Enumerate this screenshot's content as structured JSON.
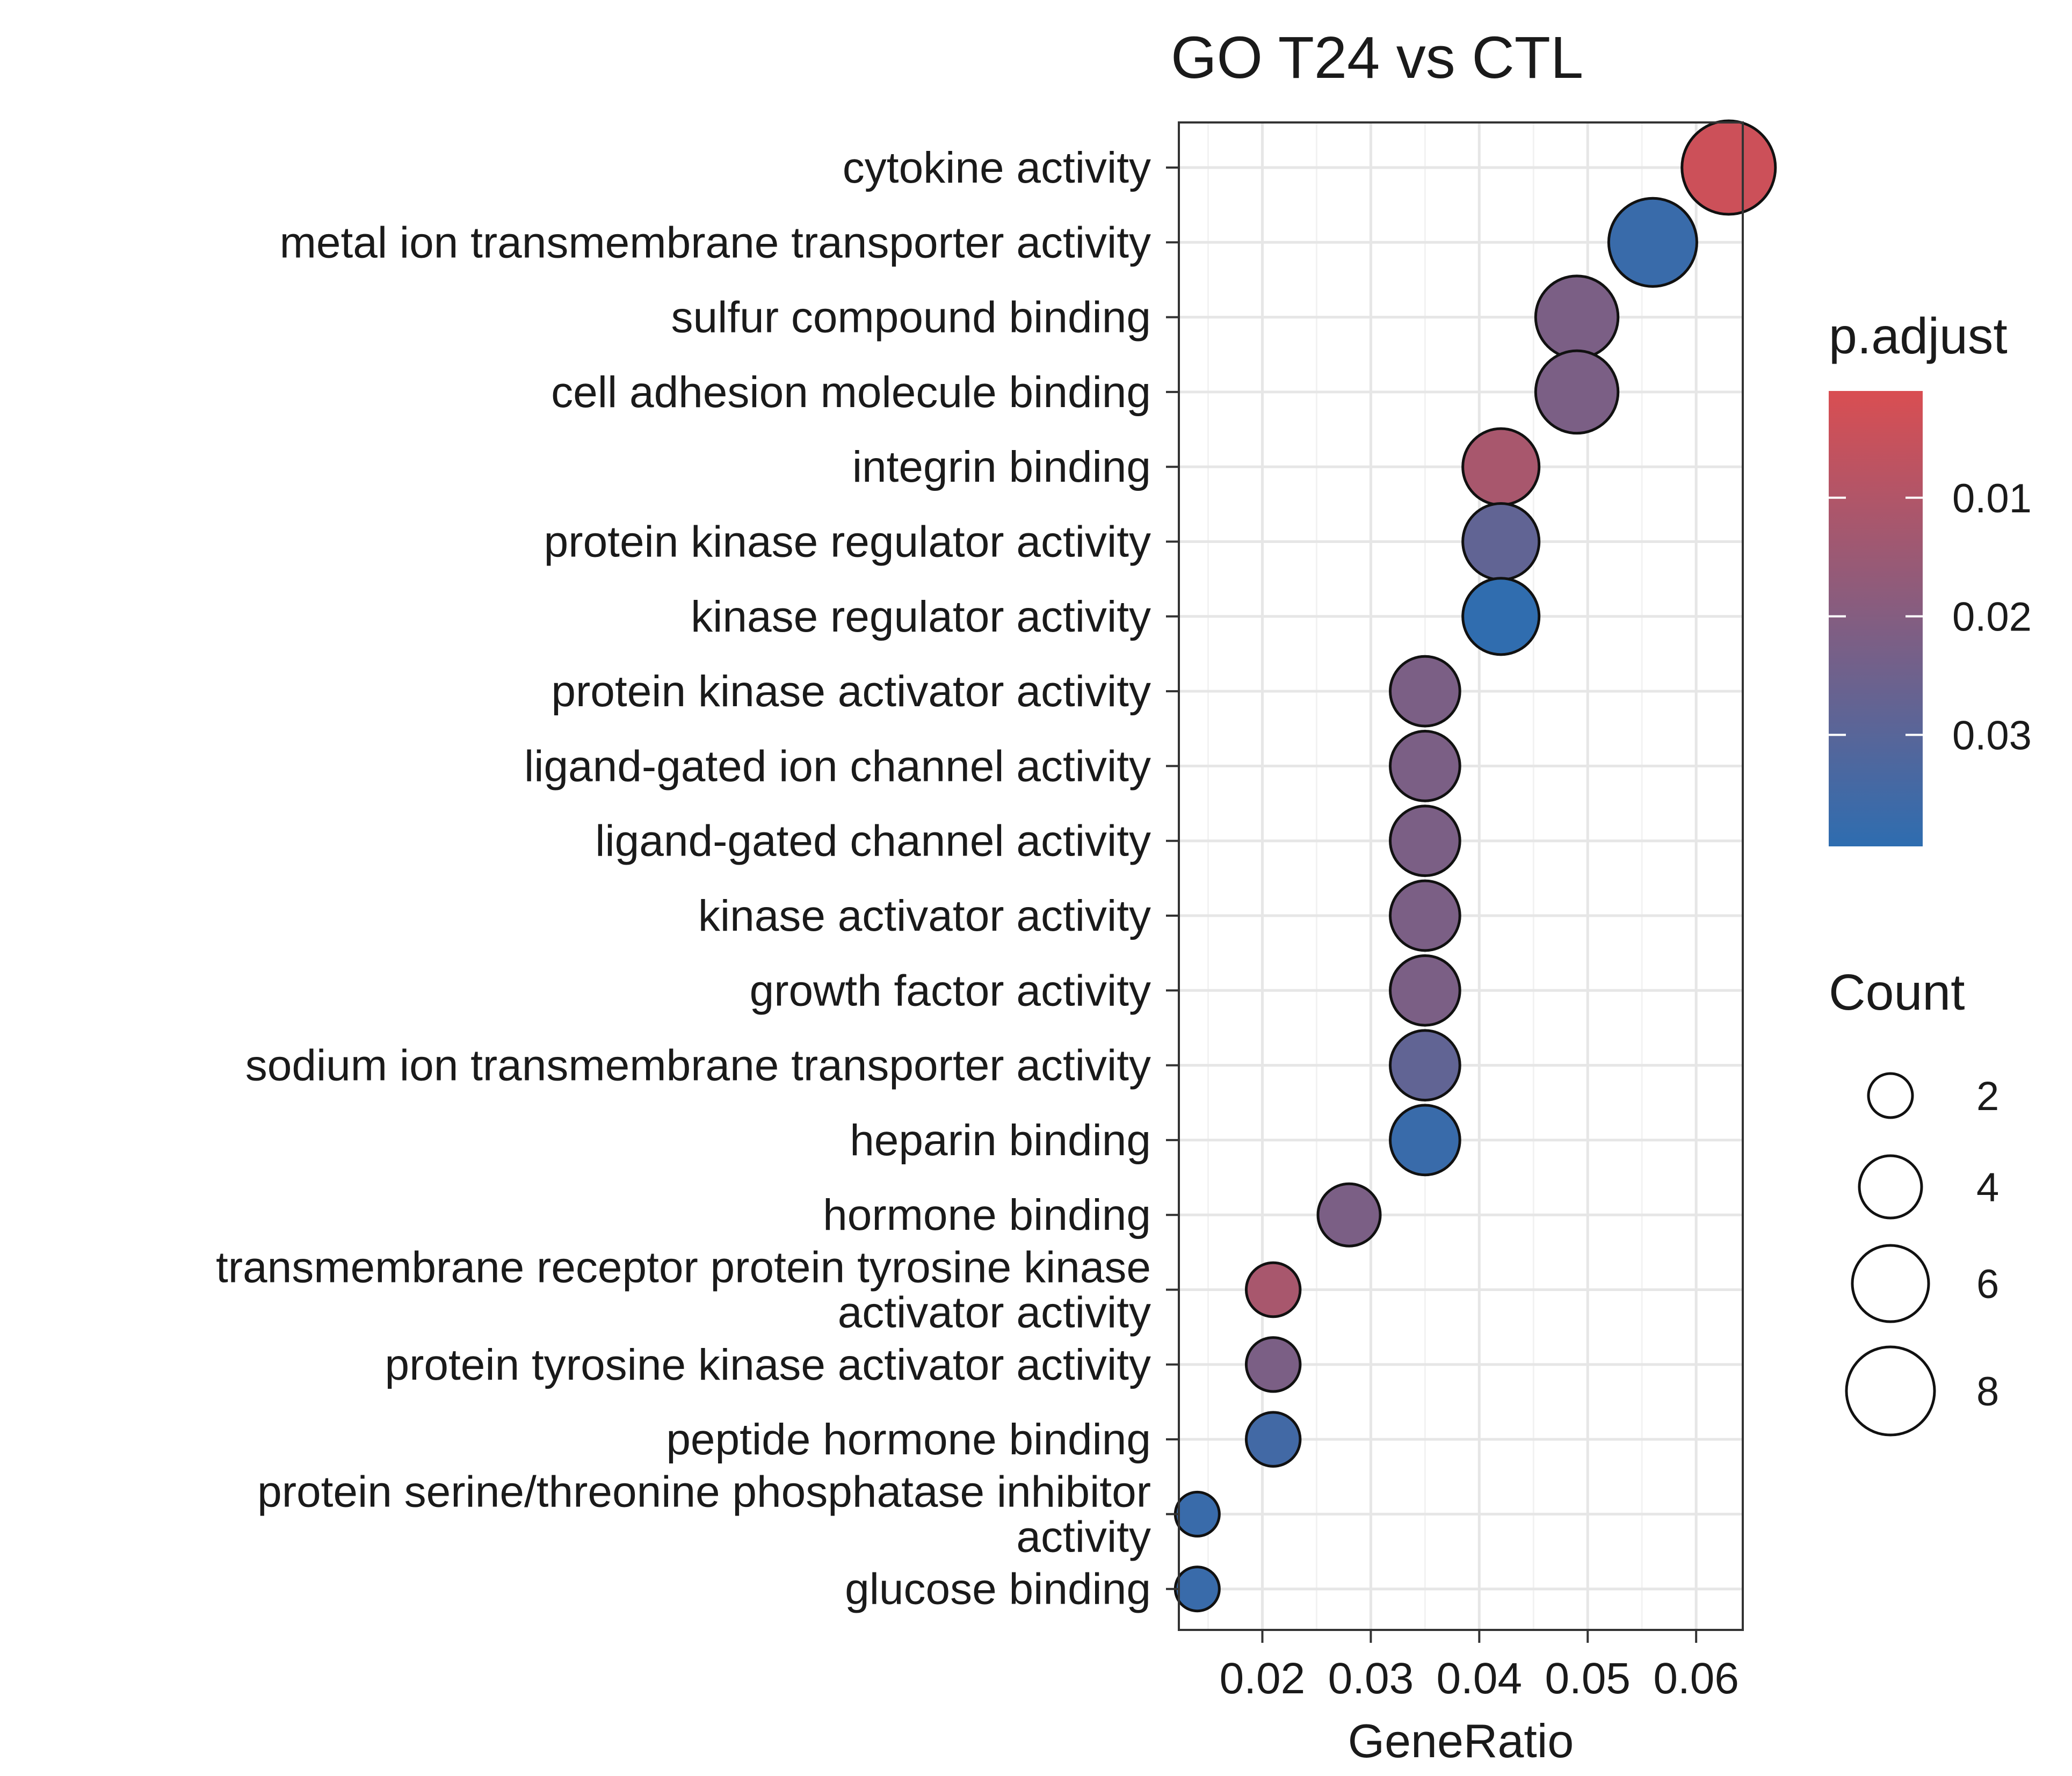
{
  "chart_data": {
    "type": "scatter",
    "title": "GO T24 vs CTL",
    "xlabel": "GeneRatio",
    "ylabel": "",
    "xlim": [
      0.0123,
      0.0643
    ],
    "xticks": [
      "0.02",
      "0.03",
      "0.04",
      "0.05",
      "0.06"
    ],
    "xtick_values": [
      0.02,
      0.03,
      0.04,
      0.05,
      0.06
    ],
    "grid": true,
    "categories": [
      [
        "cytokine activity"
      ],
      [
        "metal ion transmembrane transporter activity"
      ],
      [
        "sulfur compound binding"
      ],
      [
        "cell adhesion molecule binding"
      ],
      [
        "integrin binding"
      ],
      [
        "protein kinase regulator activity"
      ],
      [
        "kinase regulator activity"
      ],
      [
        "protein kinase activator activity"
      ],
      [
        "ligand-gated ion channel activity"
      ],
      [
        "ligand-gated channel activity"
      ],
      [
        "kinase activator activity"
      ],
      [
        "growth factor activity"
      ],
      [
        "sodium ion transmembrane transporter activity"
      ],
      [
        "heparin binding"
      ],
      [
        "hormone binding"
      ],
      [
        "transmembrane receptor protein tyrosine kinase",
        "activator activity"
      ],
      [
        "protein tyrosine kinase activator activity"
      ],
      [
        "peptide hormone binding"
      ],
      [
        "protein serine/threonine phosphatase inhibitor",
        "activity"
      ],
      [
        "glucose binding"
      ]
    ],
    "points": [
      {
        "x": 0.063,
        "count": 9,
        "p_adjust": 0.004
      },
      {
        "x": 0.056,
        "count": 8,
        "p_adjust": 0.037
      },
      {
        "x": 0.049,
        "count": 7,
        "p_adjust": 0.022
      },
      {
        "x": 0.049,
        "count": 7,
        "p_adjust": 0.022
      },
      {
        "x": 0.042,
        "count": 6,
        "p_adjust": 0.012
      },
      {
        "x": 0.042,
        "count": 6,
        "p_adjust": 0.028
      },
      {
        "x": 0.042,
        "count": 6,
        "p_adjust": 0.039
      },
      {
        "x": 0.035,
        "count": 5,
        "p_adjust": 0.022
      },
      {
        "x": 0.035,
        "count": 5,
        "p_adjust": 0.022
      },
      {
        "x": 0.035,
        "count": 5,
        "p_adjust": 0.022
      },
      {
        "x": 0.035,
        "count": 5,
        "p_adjust": 0.022
      },
      {
        "x": 0.035,
        "count": 5,
        "p_adjust": 0.022
      },
      {
        "x": 0.035,
        "count": 5,
        "p_adjust": 0.028
      },
      {
        "x": 0.035,
        "count": 5,
        "p_adjust": 0.037
      },
      {
        "x": 0.028,
        "count": 4,
        "p_adjust": 0.022
      },
      {
        "x": 0.021,
        "count": 3,
        "p_adjust": 0.012
      },
      {
        "x": 0.021,
        "count": 3,
        "p_adjust": 0.022
      },
      {
        "x": 0.021,
        "count": 3,
        "p_adjust": 0.035
      },
      {
        "x": 0.014,
        "count": 2,
        "p_adjust": 0.037
      },
      {
        "x": 0.014,
        "count": 2,
        "p_adjust": 0.037
      }
    ],
    "color_legend": {
      "title": "p.adjust",
      "ticks": [
        "0.01",
        "0.02",
        "0.03"
      ],
      "tick_values": [
        0.01,
        0.02,
        0.03
      ],
      "range": [
        0.001,
        0.0394
      ],
      "low_color": "#d94e52",
      "high_color": "#2e6db0"
    },
    "size_legend": {
      "title": "Count",
      "ticks": [
        "2",
        "4",
        "6",
        "8"
      ],
      "tick_values": [
        2,
        4,
        6,
        8
      ]
    },
    "legend_position": "right"
  }
}
